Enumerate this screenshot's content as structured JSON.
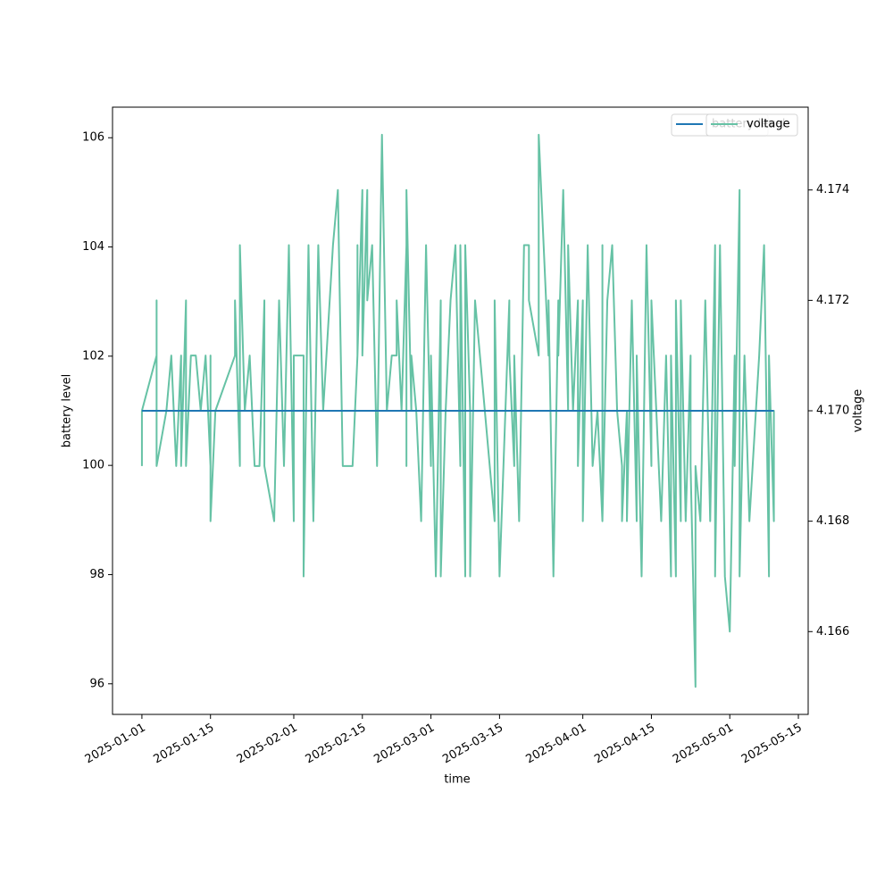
{
  "chart_data": {
    "type": "line",
    "xlabel": "time",
    "ylabel": "battery level",
    "y2label": "voltage",
    "xlim": [
      "2024-12-26",
      "2025-05-17"
    ],
    "xticks": [
      "2025-01-01",
      "2025-01-15",
      "2025-02-01",
      "2025-02-15",
      "2025-03-01",
      "2025-03-15",
      "2025-04-01",
      "2025-04-15",
      "2025-05-01",
      "2025-05-15"
    ],
    "ylim": [
      95.44,
      106.56
    ],
    "yticks": [
      96,
      98,
      100,
      102,
      104,
      106
    ],
    "y2lim": [
      4.1645,
      4.1755
    ],
    "y2ticks": [
      4.166,
      4.168,
      {
        "value": 4.17,
        "label": "4.170"
      },
      4.172,
      4.174
    ],
    "legend": "upper right",
    "series": [
      {
        "name": "battery level",
        "color": "#1f77b4",
        "axis": "y",
        "x": [
          "2025-01-01",
          "2025-05-10"
        ],
        "values": [
          101,
          101
        ]
      },
      {
        "name": "voltage",
        "color": "#66c2a5",
        "axis": "y2",
        "x": [
          "2025-01-01",
          "2025-01-01",
          "2025-01-04",
          "2025-01-04",
          "2025-01-04",
          "2025-01-06",
          "2025-01-07",
          "2025-01-08",
          "2025-01-09",
          "2025-01-09",
          "2025-01-10",
          "2025-01-10",
          "2025-01-11",
          "2025-01-12",
          "2025-01-13",
          "2025-01-14",
          "2025-01-15",
          "2025-01-15",
          "2025-01-15",
          "2025-01-16",
          "2025-01-20",
          "2025-01-20",
          "2025-01-21",
          "2025-01-21",
          "2025-01-22",
          "2025-01-23",
          "2025-01-24",
          "2025-01-25",
          "2025-01-26",
          "2025-01-26",
          "2025-01-28",
          "2025-01-29",
          "2025-01-30",
          "2025-01-31",
          "2025-02-01",
          "2025-02-01",
          "2025-02-03",
          "2025-02-03",
          "2025-02-04",
          "2025-02-05",
          "2025-02-06",
          "2025-02-07",
          "2025-02-09",
          "2025-02-10",
          "2025-02-11",
          "2025-02-13",
          "2025-02-14",
          "2025-02-14",
          "2025-02-14",
          "2025-02-15",
          "2025-02-15",
          "2025-02-16",
          "2025-02-16",
          "2025-02-17",
          "2025-02-18",
          "2025-02-19",
          "2025-02-20",
          "2025-02-21",
          "2025-02-22",
          "2025-02-22",
          "2025-02-23",
          "2025-02-24",
          "2025-02-24",
          "2025-02-24",
          "2025-02-25",
          "2025-02-25",
          "2025-02-26",
          "2025-02-27",
          "2025-02-28",
          "2025-03-01",
          "2025-03-01",
          "2025-03-02",
          "2025-03-03",
          "2025-03-03",
          "2025-03-04",
          "2025-03-05",
          "2025-03-06",
          "2025-03-07",
          "2025-03-07",
          "2025-03-08",
          "2025-03-08",
          "2025-03-09",
          "2025-03-09",
          "2025-03-10",
          "2025-03-12",
          "2025-03-14",
          "2025-03-14",
          "2025-03-15",
          "2025-03-17",
          "2025-03-17",
          "2025-03-18",
          "2025-03-18",
          "2025-03-19",
          "2025-03-20",
          "2025-03-21",
          "2025-03-21",
          "2025-03-23",
          "2025-03-23",
          "2025-03-25",
          "2025-03-25",
          "2025-03-26",
          "2025-03-27",
          "2025-03-27",
          "2025-03-28",
          "2025-03-29",
          "2025-03-29",
          "2025-03-30",
          "2025-03-31",
          "2025-03-31",
          "2025-04-01",
          "2025-04-01",
          "2025-04-02",
          "2025-04-03",
          "2025-04-04",
          "2025-04-05",
          "2025-04-05",
          "2025-04-05",
          "2025-04-06",
          "2025-04-07",
          "2025-04-08",
          "2025-04-09",
          "2025-04-09",
          "2025-04-10",
          "2025-04-10",
          "2025-04-11",
          "2025-04-12",
          "2025-04-12",
          "2025-04-13",
          "2025-04-14",
          "2025-04-15",
          "2025-04-15",
          "2025-04-16",
          "2025-04-17",
          "2025-04-18",
          "2025-04-19",
          "2025-04-19",
          "2025-04-20",
          "2025-04-20",
          "2025-04-21",
          "2025-04-21",
          "2025-04-22",
          "2025-04-23",
          "2025-04-23",
          "2025-04-24",
          "2025-04-24",
          "2025-04-25",
          "2025-04-26",
          "2025-04-27",
          "2025-04-28",
          "2025-04-28",
          "2025-04-29",
          "2025-04-30",
          "2025-05-01",
          "2025-05-02",
          "2025-05-02",
          "2025-05-03",
          "2025-05-03",
          "2025-05-04",
          "2025-05-05",
          "2025-05-07",
          "2025-05-08",
          "2025-05-09",
          "2025-05-09",
          "2025-05-10",
          "2025-05-10",
          "2025-05-10"
        ],
        "values": [
          4.169,
          4.17,
          4.171,
          4.172,
          4.169,
          4.17,
          4.171,
          4.169,
          4.171,
          4.169,
          4.172,
          4.169,
          4.171,
          4.171,
          4.17,
          4.171,
          4.169,
          4.171,
          4.168,
          4.17,
          4.171,
          4.172,
          4.169,
          4.173,
          4.17,
          4.171,
          4.169,
          4.169,
          4.172,
          4.169,
          4.168,
          4.172,
          4.169,
          4.173,
          4.168,
          4.171,
          4.171,
          4.167,
          4.173,
          4.168,
          4.173,
          4.17,
          4.173,
          4.174,
          4.169,
          4.169,
          4.171,
          4.173,
          4.171,
          4.174,
          4.171,
          4.174,
          4.172,
          4.173,
          4.169,
          4.175,
          4.17,
          4.171,
          4.171,
          4.172,
          4.17,
          4.173,
          4.169,
          4.174,
          4.17,
          4.171,
          4.17,
          4.168,
          4.173,
          4.169,
          4.171,
          4.167,
          4.172,
          4.167,
          4.17,
          4.172,
          4.173,
          4.169,
          4.173,
          4.167,
          4.173,
          4.17,
          4.167,
          4.172,
          4.17,
          4.168,
          4.172,
          4.167,
          4.172,
          4.171,
          4.169,
          4.171,
          4.168,
          4.173,
          4.173,
          4.172,
          4.171,
          4.175,
          4.171,
          4.172,
          4.167,
          4.172,
          4.171,
          4.174,
          4.17,
          4.173,
          4.17,
          4.172,
          4.169,
          4.172,
          4.168,
          4.173,
          4.169,
          4.17,
          4.168,
          4.173,
          4.168,
          4.172,
          4.173,
          4.17,
          4.169,
          4.168,
          4.17,
          4.168,
          4.172,
          4.168,
          4.171,
          4.167,
          4.173,
          4.169,
          4.172,
          4.17,
          4.168,
          4.171,
          4.167,
          4.171,
          4.167,
          4.172,
          4.168,
          4.172,
          4.168,
          4.171,
          4.169,
          4.165,
          4.169,
          4.168,
          4.172,
          4.168,
          4.173,
          4.167,
          4.173,
          4.167,
          4.166,
          4.171,
          4.169,
          4.174,
          4.167,
          4.171,
          4.168,
          4.171,
          4.173,
          4.167,
          4.171,
          4.168,
          4.17,
          4.169
        ]
      }
    ]
  }
}
